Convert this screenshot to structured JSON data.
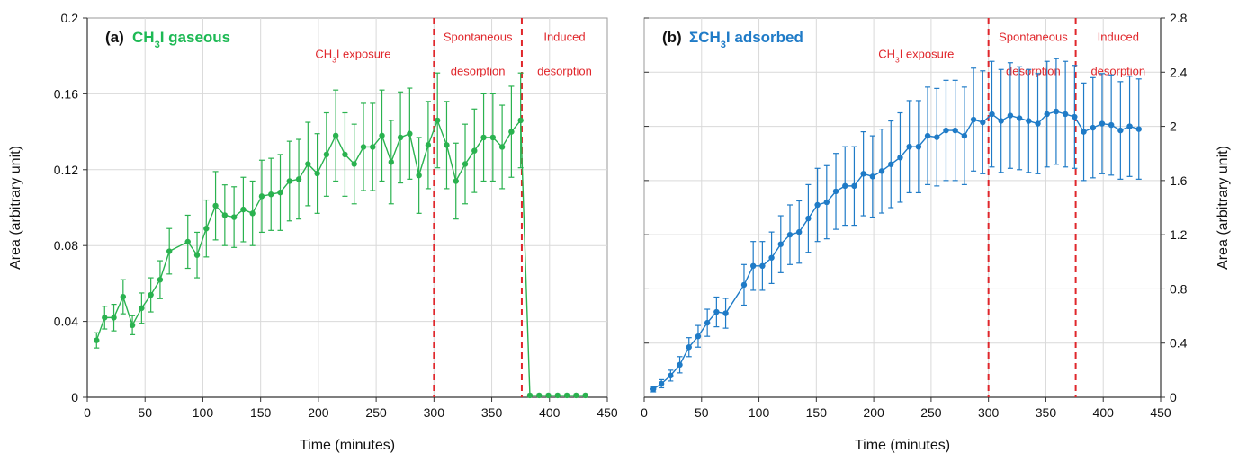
{
  "chart_data": [
    {
      "type": "line",
      "panel": "(a)",
      "title_prefix": "(a)",
      "title": "CH3I gaseous",
      "title_color": "#1db954",
      "xlabel": "Time (minutes)",
      "ylabel": "Area (arbitrary unit)",
      "xlim": [
        0,
        450
      ],
      "ylim": [
        0,
        0.2
      ],
      "xticks": [
        0,
        50,
        100,
        150,
        200,
        250,
        300,
        350,
        400,
        450
      ],
      "yticks": [
        0,
        0.04,
        0.08,
        0.12,
        0.16,
        0.2
      ],
      "ytick_labels": [
        "0",
        "0.04",
        "0.08",
        "0.12",
        "0.16",
        "0.2"
      ],
      "yaxis_side": "left",
      "grid": true,
      "color": "#2ab24f",
      "vlines": [
        300,
        376
      ],
      "vline_color": "#e0262b",
      "annotations": [
        {
          "text": "CH3I exposure",
          "x": 230,
          "y_frac": 0.105
        },
        {
          "text": "Spontaneous",
          "x": 338,
          "y_frac": 0.06
        },
        {
          "text": "desorption",
          "x": 338,
          "y_frac": 0.15
        },
        {
          "text": "Induced",
          "x": 413,
          "y_frac": 0.06
        },
        {
          "text": "desorption",
          "x": 413,
          "y_frac": 0.15
        }
      ],
      "series": [
        {
          "x": [
            8,
            15,
            23,
            31,
            39,
            47,
            55,
            63,
            71,
            87,
            95,
            103,
            111,
            119,
            127,
            135,
            143,
            151,
            159,
            167,
            175,
            183,
            191,
            199,
            207,
            215,
            223,
            231,
            239,
            247,
            255,
            263,
            271,
            279,
            287,
            295,
            303,
            311,
            319,
            327,
            335,
            343,
            351,
            359,
            367,
            375,
            383,
            391,
            399,
            407,
            415,
            423,
            431
          ],
          "y": [
            0.03,
            0.042,
            0.042,
            0.053,
            0.038,
            0.047,
            0.054,
            0.062,
            0.077,
            0.082,
            0.075,
            0.089,
            0.101,
            0.096,
            0.095,
            0.099,
            0.097,
            0.106,
            0.107,
            0.108,
            0.114,
            0.115,
            0.123,
            0.118,
            0.128,
            0.138,
            0.128,
            0.123,
            0.132,
            0.132,
            0.138,
            0.124,
            0.137,
            0.139,
            0.117,
            0.133,
            0.146,
            0.133,
            0.114,
            0.123,
            0.13,
            0.137,
            0.137,
            0.132,
            0.14,
            0.146,
            0.001,
            0.001,
            0.001,
            0.001,
            0.001,
            0.001,
            0.001
          ],
          "err": [
            0.004,
            0.006,
            0.007,
            0.009,
            0.005,
            0.008,
            0.009,
            0.01,
            0.012,
            0.014,
            0.012,
            0.015,
            0.018,
            0.016,
            0.016,
            0.017,
            0.017,
            0.019,
            0.019,
            0.02,
            0.021,
            0.021,
            0.022,
            0.021,
            0.022,
            0.024,
            0.022,
            0.021,
            0.023,
            0.023,
            0.024,
            0.022,
            0.024,
            0.024,
            0.02,
            0.023,
            0.025,
            0.023,
            0.02,
            0.021,
            0.022,
            0.023,
            0.023,
            0.022,
            0.024,
            0.025,
            0,
            0,
            0,
            0,
            0,
            0,
            0
          ]
        }
      ]
    },
    {
      "type": "line",
      "panel": "(b)",
      "title_prefix": "(b)",
      "title": "ΣCH3I adsorbed",
      "title_color": "#1f7bc7",
      "xlabel": "Time (minutes)",
      "ylabel": "Area (arbitrary unit)",
      "xlim": [
        0,
        450
      ],
      "ylim": [
        0,
        2.8
      ],
      "xticks": [
        0,
        50,
        100,
        150,
        200,
        250,
        300,
        350,
        400,
        450
      ],
      "yticks": [
        0,
        0.4,
        0.8,
        1.2,
        1.6,
        2.0,
        2.4,
        2.8
      ],
      "ytick_labels": [
        "0",
        "0.4",
        "0.8",
        "1.2",
        "1.6",
        "2",
        "2.4",
        "2.8"
      ],
      "yaxis_side": "right",
      "grid": true,
      "color": "#1f7bc7",
      "vlines": [
        300,
        376
      ],
      "vline_color": "#e0262b",
      "annotations": [
        {
          "text": "CH3I exposure",
          "x": 237,
          "y_frac": 0.105
        },
        {
          "text": "Spontaneous",
          "x": 339,
          "y_frac": 0.06
        },
        {
          "text": "desorption",
          "x": 339,
          "y_frac": 0.15
        },
        {
          "text": "Induced",
          "x": 413,
          "y_frac": 0.06
        },
        {
          "text": "desorption",
          "x": 413,
          "y_frac": 0.15
        }
      ],
      "series": [
        {
          "x": [
            8,
            15,
            23,
            31,
            39,
            47,
            55,
            63,
            71,
            87,
            95,
            103,
            111,
            119,
            127,
            135,
            143,
            151,
            159,
            167,
            175,
            183,
            191,
            199,
            207,
            215,
            223,
            231,
            239,
            247,
            255,
            263,
            271,
            279,
            287,
            295,
            303,
            311,
            319,
            327,
            335,
            343,
            351,
            359,
            367,
            375,
            383,
            391,
            399,
            407,
            415,
            423,
            431
          ],
          "y": [
            0.06,
            0.1,
            0.16,
            0.24,
            0.37,
            0.45,
            0.55,
            0.63,
            0.62,
            0.83,
            0.97,
            0.97,
            1.03,
            1.13,
            1.2,
            1.22,
            1.32,
            1.42,
            1.44,
            1.52,
            1.56,
            1.56,
            1.65,
            1.63,
            1.67,
            1.72,
            1.77,
            1.85,
            1.85,
            1.93,
            1.92,
            1.97,
            1.97,
            1.93,
            2.05,
            2.03,
            2.09,
            2.04,
            2.08,
            2.06,
            2.04,
            2.02,
            2.09,
            2.11,
            2.09,
            2.07,
            1.96,
            1.99,
            2.02,
            2.01,
            1.97,
            2.0,
            1.98
          ],
          "err": [
            0.02,
            0.03,
            0.04,
            0.06,
            0.07,
            0.08,
            0.1,
            0.11,
            0.11,
            0.15,
            0.18,
            0.18,
            0.19,
            0.21,
            0.22,
            0.23,
            0.25,
            0.27,
            0.27,
            0.28,
            0.29,
            0.29,
            0.31,
            0.3,
            0.31,
            0.32,
            0.33,
            0.34,
            0.34,
            0.36,
            0.36,
            0.37,
            0.37,
            0.36,
            0.38,
            0.38,
            0.39,
            0.38,
            0.39,
            0.38,
            0.38,
            0.37,
            0.39,
            0.39,
            0.39,
            0.38,
            0.36,
            0.37,
            0.37,
            0.37,
            0.36,
            0.37,
            0.37
          ]
        }
      ]
    }
  ]
}
